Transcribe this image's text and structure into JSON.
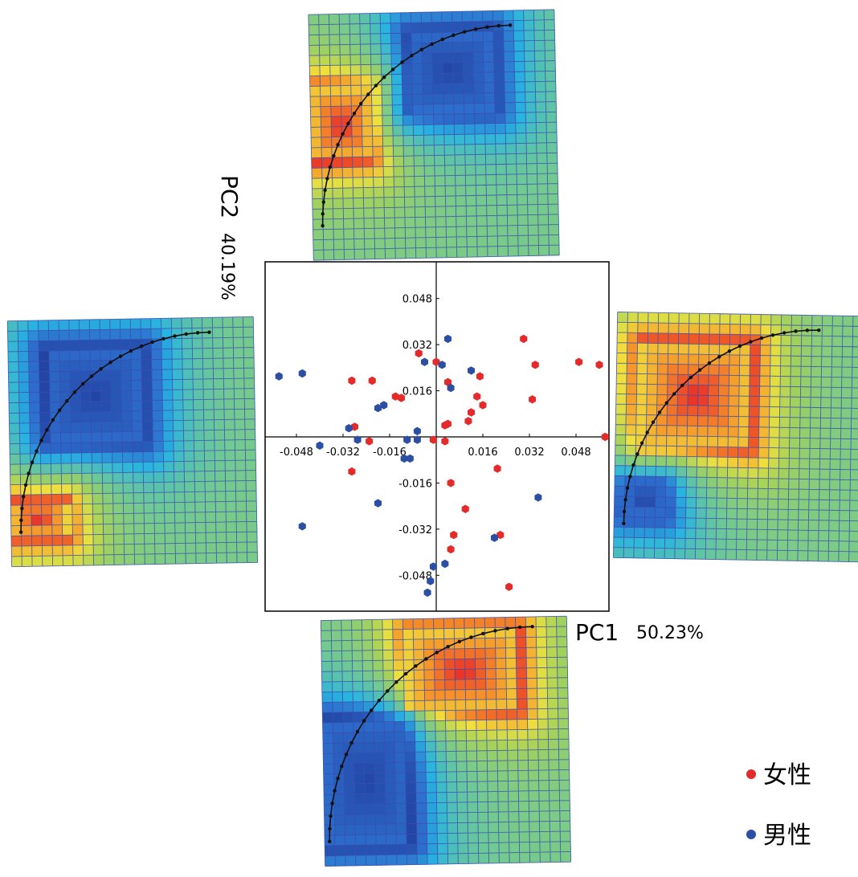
{
  "chart_data": {
    "type": "scatter",
    "title": "",
    "xlabel": "PC1",
    "xlabel_pct": "50.23%",
    "ylabel": "PC2",
    "ylabel_pct": "40.19%",
    "xlim": [
      -0.058,
      0.058
    ],
    "ylim": [
      -0.058,
      0.058
    ],
    "x_ticks": [
      "-0.048",
      "-0.032",
      "-0.016",
      "0.016",
      "0.032",
      "0.048"
    ],
    "y_ticks": [
      "0.048",
      "0.032",
      "0.016",
      "-0.016",
      "-0.032",
      "-0.048"
    ],
    "grid": false,
    "legend_position": "bottom-right",
    "series": [
      {
        "name": "女性",
        "color": "#e32b2b",
        "points": [
          [
            -0.029,
            0.0195
          ],
          [
            -0.022,
            0.0195
          ],
          [
            -0.006,
            0.029
          ],
          [
            0.0,
            0.026
          ],
          [
            -0.014,
            0.014
          ],
          [
            -0.012,
            0.0135
          ],
          [
            0.004,
            0.019
          ],
          [
            0.015,
            0.021
          ],
          [
            0.03,
            0.034
          ],
          [
            0.034,
            0.025
          ],
          [
            0.049,
            0.026
          ],
          [
            0.056,
            0.025
          ],
          [
            0.014,
            0.014
          ],
          [
            0.016,
            0.011
          ],
          [
            0.033,
            0.013
          ],
          [
            0.012,
            0.0085
          ],
          [
            0.003,
            0.004
          ],
          [
            0.004,
            0.0045
          ],
          [
            0.011,
            0.0055
          ],
          [
            -0.028,
            0.0035
          ],
          [
            -0.023,
            -0.0015
          ],
          [
            -0.029,
            -0.012
          ],
          [
            -0.001,
            -0.001
          ],
          [
            0.003,
            -0.0015
          ],
          [
            0.005,
            -0.016
          ],
          [
            0.01,
            -0.025
          ],
          [
            0.006,
            -0.034
          ],
          [
            0.005,
            -0.039
          ],
          [
            0.021,
            -0.011
          ],
          [
            0.022,
            -0.034
          ],
          [
            0.025,
            -0.052
          ],
          [
            0.058,
            0.0
          ]
        ]
      },
      {
        "name": "男性",
        "color": "#2c4fa3",
        "points": [
          [
            -0.054,
            0.021
          ],
          [
            -0.046,
            0.022
          ],
          [
            -0.004,
            0.026
          ],
          [
            0.002,
            0.025
          ],
          [
            0.004,
            0.034
          ],
          [
            0.012,
            0.023
          ],
          [
            0.005,
            0.017
          ],
          [
            -0.02,
            0.01
          ],
          [
            -0.018,
            0.011
          ],
          [
            -0.03,
            0.003
          ],
          [
            -0.027,
            -0.001
          ],
          [
            -0.01,
            -0.001
          ],
          [
            -0.011,
            -0.0075
          ],
          [
            -0.009,
            -0.0075
          ],
          [
            -0.04,
            -0.003
          ],
          [
            -0.02,
            -0.023
          ],
          [
            -0.046,
            -0.031
          ],
          [
            0.02,
            -0.035
          ],
          [
            0.035,
            -0.021
          ],
          [
            -0.001,
            -0.045
          ],
          [
            0.003,
            -0.044
          ],
          [
            -0.003,
            -0.054
          ],
          [
            -0.002,
            -0.05
          ],
          [
            -0.0065,
            0.002
          ],
          [
            -0.0065,
            -0.001
          ]
        ]
      }
    ]
  },
  "thumbnails": [
    {
      "name": "top",
      "hot": [
        0.0,
        0.3,
        0.25,
        0.6
      ],
      "cold": [
        0.4,
        0.08,
        0.75,
        0.4
      ],
      "arc": "top-left"
    },
    {
      "name": "left",
      "hot": [
        0.0,
        0.73,
        0.23,
        0.88
      ],
      "cold": [
        0.15,
        0.12,
        0.55,
        0.5
      ],
      "arc": "top-left"
    },
    {
      "name": "right",
      "hot": [
        0.1,
        0.12,
        0.55,
        0.55
      ],
      "cold": [
        0.05,
        0.7,
        0.2,
        0.82
      ],
      "arc": "top-left"
    },
    {
      "name": "bottom",
      "hot": [
        0.35,
        0.05,
        0.8,
        0.38
      ],
      "cold": [
        0.0,
        0.4,
        0.35,
        0.92
      ],
      "arc": "bottom-left"
    }
  ]
}
